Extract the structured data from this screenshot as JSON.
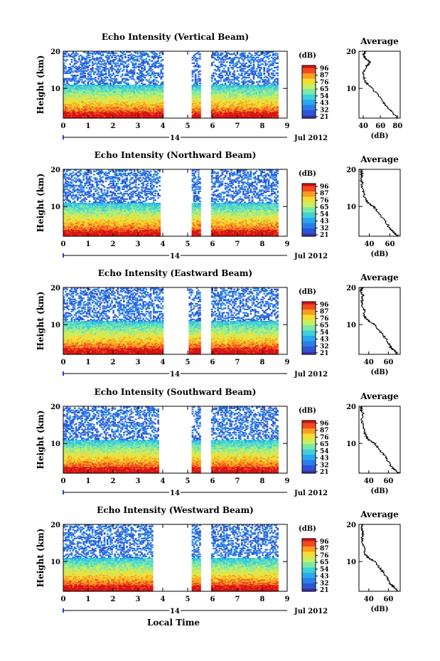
{
  "figure": {
    "xlabel": "Local Time",
    "date_label": "Jul 2012",
    "day_label": "14",
    "ylabel": "Height (km)",
    "colorbar_unit": "(dB)",
    "colorbar_ticks": [
      "96",
      "87",
      "76",
      "65",
      "54",
      "43",
      "32",
      "21"
    ],
    "colormap": [
      "#3b32a8",
      "#2f55d4",
      "#2a7ee8",
      "#2aa8ee",
      "#3fd0d9",
      "#7be8a8",
      "#c8ee62",
      "#f4dc34",
      "#fa9e22",
      "#f04a1e",
      "#d61414"
    ],
    "avg_title": "Average",
    "avg_xlabel": "(dB)"
  },
  "chart_data": [
    {
      "type": "heatmap",
      "title": "Echo Intensity (Vertical Beam)",
      "xlabel": "",
      "ylabel": "Height (km)",
      "xlim": [
        0,
        9
      ],
      "ylim": [
        2,
        20
      ],
      "xticks": [
        0,
        1,
        2,
        3,
        4,
        5,
        6,
        7,
        8,
        9
      ],
      "yticks": [
        10,
        20
      ],
      "gaps": [
        [
          4.0,
          5.15
        ],
        [
          5.5,
          5.9
        ]
      ],
      "colorbar": {
        "label": "(dB)",
        "range": [
          21,
          96
        ]
      },
      "average_profile": {
        "title": "Average",
        "xlabel": "(dB)",
        "xlim": [
          35,
          83
        ],
        "xticks": [
          40,
          60,
          80
        ],
        "height": [
          2,
          4,
          6,
          8,
          10,
          11,
          12,
          14,
          16,
          17,
          18,
          19,
          20
        ],
        "intensity": [
          80,
          72,
          64,
          58,
          50,
          45,
          42,
          40,
          44,
          48,
          43,
          40,
          42
        ]
      }
    },
    {
      "type": "heatmap",
      "title": "Echo Intensity (Northward Beam)",
      "xlabel": "",
      "ylabel": "Height (km)",
      "xlim": [
        0,
        9
      ],
      "ylim": [
        2,
        20
      ],
      "xticks": [
        0,
        1,
        2,
        3,
        4,
        5,
        6,
        7,
        8,
        9
      ],
      "yticks": [
        10,
        20
      ],
      "gaps": [
        [
          3.9,
          5.1
        ],
        [
          5.5,
          5.9
        ]
      ],
      "colorbar": {
        "label": "(dB)",
        "range": [
          21,
          96
        ]
      },
      "average_profile": {
        "title": "Average",
        "xlabel": "(dB)",
        "xlim": [
          30,
          70
        ],
        "xticks": [
          40,
          60
        ],
        "height": [
          2,
          3,
          4,
          6,
          8,
          10,
          11,
          12,
          14,
          16,
          18,
          19,
          20
        ],
        "intensity": [
          68,
          64,
          60,
          56,
          50,
          44,
          39,
          36,
          34,
          33,
          32,
          33,
          32
        ]
      }
    },
    {
      "type": "heatmap",
      "title": "Echo Intensity (Eastward Beam)",
      "xlabel": "",
      "ylabel": "Height (km)",
      "xlim": [
        0,
        9
      ],
      "ylim": [
        2,
        20
      ],
      "xticks": [
        0,
        1,
        2,
        3,
        4,
        5,
        6,
        7,
        8,
        9
      ],
      "yticks": [
        10,
        20
      ],
      "gaps": [
        [
          4.0,
          5.0
        ],
        [
          5.5,
          5.9
        ]
      ],
      "colorbar": {
        "label": "(dB)",
        "range": [
          21,
          96
        ]
      },
      "average_profile": {
        "title": "Average",
        "xlabel": "(dB)",
        "xlim": [
          30,
          72
        ],
        "xticks": [
          40,
          60
        ],
        "height": [
          2,
          3,
          4,
          6,
          8,
          10,
          11,
          12,
          14,
          16,
          18,
          19,
          20
        ],
        "intensity": [
          70,
          66,
          62,
          58,
          52,
          46,
          40,
          36,
          35,
          33,
          34,
          32,
          33
        ]
      }
    },
    {
      "type": "heatmap",
      "title": "Echo Intensity (Southward Beam)",
      "xlabel": "",
      "ylabel": "Height (km)",
      "xlim": [
        0,
        9
      ],
      "ylim": [
        2,
        20
      ],
      "xticks": [
        0,
        1,
        2,
        3,
        4,
        5,
        6,
        7,
        8,
        9
      ],
      "yticks": [
        10,
        20
      ],
      "gaps": [
        [
          3.8,
          5.1
        ],
        [
          5.5,
          5.9
        ]
      ],
      "colorbar": {
        "label": "(dB)",
        "range": [
          21,
          96
        ]
      },
      "average_profile": {
        "title": "Average",
        "xlabel": "(dB)",
        "xlim": [
          30,
          72
        ],
        "xticks": [
          40,
          60
        ],
        "height": [
          2,
          3,
          4,
          6,
          8,
          10,
          11,
          12,
          14,
          16,
          18,
          19,
          20
        ],
        "intensity": [
          70,
          66,
          62,
          58,
          52,
          46,
          40,
          37,
          35,
          33,
          34,
          32,
          33
        ]
      }
    },
    {
      "type": "heatmap",
      "title": "Echo Intensity (Westward Beam)",
      "xlabel": "Local Time",
      "ylabel": "Height (km)",
      "xlim": [
        0,
        9
      ],
      "ylim": [
        2,
        20
      ],
      "xticks": [
        0,
        1,
        2,
        3,
        4,
        5,
        6,
        7,
        8,
        9
      ],
      "yticks": [
        10,
        20
      ],
      "gaps": [
        [
          3.6,
          5.1
        ],
        [
          5.5,
          5.9
        ]
      ],
      "colorbar": {
        "label": "(dB)",
        "range": [
          21,
          96
        ]
      },
      "average_profile": {
        "title": "Average",
        "xlabel": "(dB)",
        "xlim": [
          30,
          72
        ],
        "xticks": [
          40,
          60
        ],
        "height": [
          2,
          3,
          4,
          6,
          8,
          10,
          11,
          12,
          14,
          16,
          18,
          19,
          20
        ],
        "intensity": [
          70,
          66,
          62,
          58,
          52,
          46,
          40,
          36,
          35,
          33,
          34,
          32,
          33
        ]
      }
    }
  ]
}
